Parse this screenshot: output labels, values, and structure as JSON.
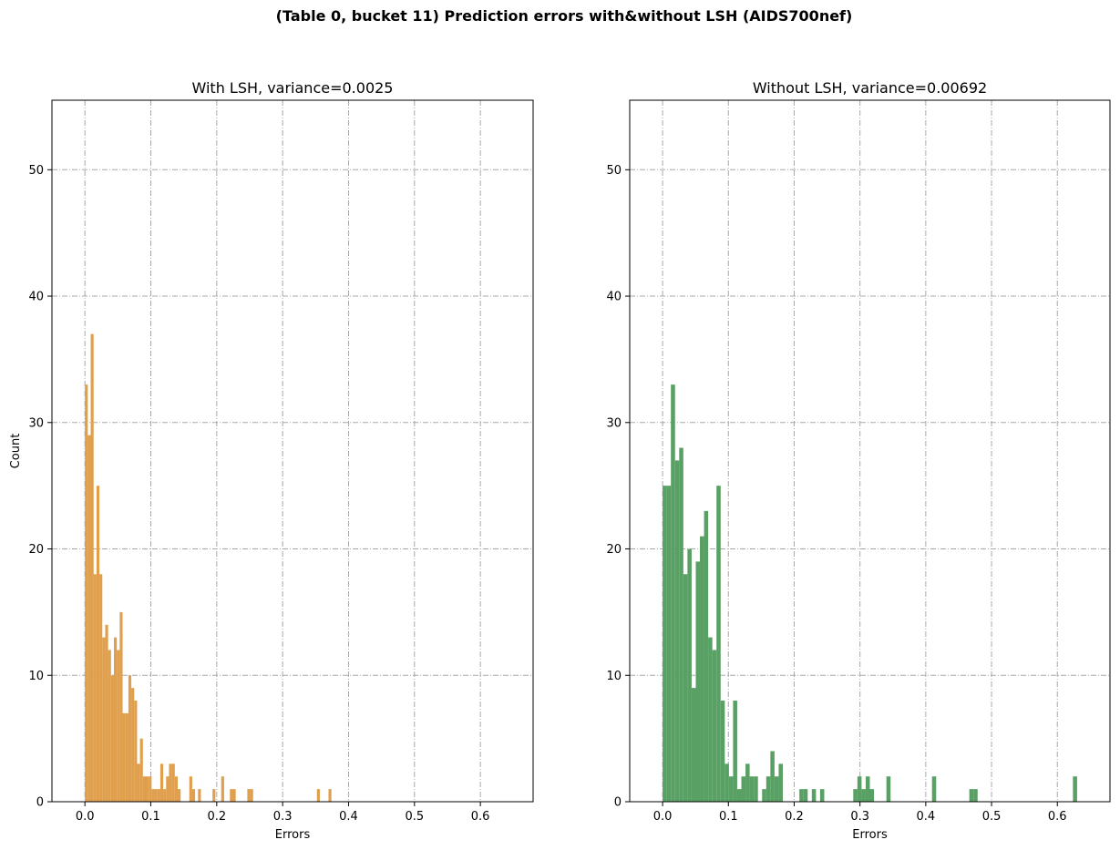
{
  "chart_data": {
    "suptitle": "(Table 0, bucket 11) Prediction errors with&without LSH (AIDS700nef)",
    "panels": [
      {
        "type": "bar",
        "title": "With LSH, variance=0.0025",
        "xlabel": "Errors",
        "ylabel": "Count",
        "color": "#e09f4d",
        "xlim": [
          -0.05,
          0.68
        ],
        "ylim": [
          0,
          55.5
        ],
        "xticks": [
          0.0,
          0.1,
          0.2,
          0.3,
          0.4,
          0.5,
          0.6
        ],
        "xtick_labels": [
          "0.0",
          "0.1",
          "0.2",
          "0.3",
          "0.4",
          "0.5",
          "0.6"
        ],
        "yticks": [
          0,
          10,
          20,
          30,
          40,
          50
        ],
        "ytick_labels": [
          "0",
          "10",
          "20",
          "30",
          "40",
          "50"
        ],
        "grid": true,
        "bin_width": 0.0044,
        "bins_x": [
          0.0,
          0.0044,
          0.0088,
          0.0132,
          0.0176,
          0.022,
          0.0264,
          0.0308,
          0.0352,
          0.0396,
          0.044,
          0.0484,
          0.0528,
          0.0572,
          0.0616,
          0.066,
          0.0704,
          0.0748,
          0.0792,
          0.0836,
          0.088,
          0.0924,
          0.0968,
          0.1012,
          0.1056,
          0.11,
          0.1144,
          0.1188,
          0.1232,
          0.1276,
          0.132,
          0.1364,
          0.1408,
          0.1584,
          0.1628,
          0.1716,
          0.1936,
          0.2068,
          0.22,
          0.2244,
          0.2464,
          0.2508,
          0.352,
          0.3696
        ],
        "counts": [
          33,
          29,
          37,
          18,
          25,
          18,
          13,
          14,
          12,
          10,
          13,
          12,
          15,
          7,
          7,
          10,
          9,
          8,
          3,
          5,
          2,
          2,
          2,
          1,
          1,
          1,
          3,
          1,
          2,
          3,
          3,
          2,
          1,
          2,
          1,
          1,
          1,
          2,
          1,
          1,
          1,
          1,
          1,
          1
        ]
      },
      {
        "type": "bar",
        "title": "Without LSH, variance=0.00692",
        "xlabel": "Errors",
        "ylabel": "",
        "color": "#59a064",
        "xlim": [
          -0.05,
          0.68
        ],
        "ylim": [
          0,
          55.5
        ],
        "xticks": [
          0.0,
          0.1,
          0.2,
          0.3,
          0.4,
          0.5,
          0.6
        ],
        "xtick_labels": [
          "0.0",
          "0.1",
          "0.2",
          "0.3",
          "0.4",
          "0.5",
          "0.6"
        ],
        "yticks": [
          0,
          10,
          20,
          30,
          40,
          50
        ],
        "ytick_labels": [
          "0",
          "10",
          "20",
          "30",
          "40",
          "50"
        ],
        "grid": true,
        "bin_width": 0.0063,
        "bins_x": [
          0.0,
          0.0063,
          0.0126,
          0.0189,
          0.0252,
          0.0315,
          0.0378,
          0.0441,
          0.0504,
          0.0567,
          0.063,
          0.0693,
          0.0756,
          0.0819,
          0.0882,
          0.0945,
          0.1008,
          0.1071,
          0.1134,
          0.1197,
          0.126,
          0.1323,
          0.1386,
          0.1512,
          0.1575,
          0.1638,
          0.1701,
          0.1764,
          0.2079,
          0.2142,
          0.2268,
          0.2394,
          0.2898,
          0.2961,
          0.3024,
          0.3087,
          0.315,
          0.3402,
          0.4095,
          0.4662,
          0.4725,
          0.6237
        ],
        "counts": [
          25,
          25,
          33,
          27,
          28,
          18,
          20,
          9,
          19,
          21,
          23,
          13,
          12,
          25,
          8,
          3,
          2,
          8,
          1,
          2,
          3,
          2,
          2,
          1,
          2,
          4,
          2,
          3,
          1,
          1,
          1,
          1,
          1,
          2,
          1,
          2,
          1,
          2,
          2,
          1,
          1,
          2
        ]
      }
    ]
  }
}
